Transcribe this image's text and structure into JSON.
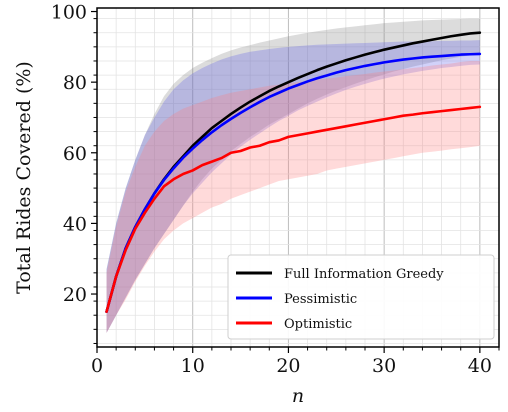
{
  "chart_data": {
    "type": "line",
    "xlabel": "n",
    "ylabel": "Total Rides Covered (%)",
    "xlim": [
      0,
      42
    ],
    "ylim": [
      5,
      101
    ],
    "xticks": [
      0,
      10,
      20,
      30,
      40
    ],
    "yticks": [
      20,
      40,
      60,
      80,
      100
    ],
    "grid": true,
    "minor_grid": true,
    "legend_position": "bottom-right",
    "x": [
      1,
      2,
      3,
      4,
      5,
      6,
      7,
      8,
      9,
      10,
      11,
      12,
      13,
      14,
      15,
      16,
      17,
      18,
      19,
      20,
      21,
      22,
      23,
      24,
      25,
      26,
      27,
      28,
      29,
      30,
      31,
      32,
      33,
      34,
      35,
      36,
      37,
      38,
      39,
      40
    ],
    "series": [
      {
        "name": "Full Information Greedy",
        "color": "#000000",
        "band_color": "#808080",
        "values": [
          15,
          25,
          33,
          39,
          44,
          48.5,
          52.5,
          56,
          59,
          62,
          64.5,
          67,
          69,
          71,
          72.8,
          74.5,
          76,
          77.5,
          78.8,
          80,
          81.2,
          82.3,
          83.4,
          84.4,
          85.3,
          86.2,
          87,
          87.8,
          88.5,
          89.2,
          89.8,
          90.4,
          91,
          91.5,
          92,
          92.5,
          93,
          93.4,
          93.8,
          94
        ],
        "upper": [
          27,
          40,
          50,
          58,
          65,
          71,
          76,
          79.5,
          82,
          84,
          85.5,
          86.8,
          88,
          89,
          89.8,
          90.5,
          91.2,
          91.8,
          92.4,
          93,
          93.5,
          94,
          94.4,
          94.8,
          95.2,
          95.5,
          95.8,
          96.1,
          96.4,
          96.7,
          96.9,
          97.1,
          97.3,
          97.5,
          97.6,
          97.7,
          97.8,
          97.9,
          98,
          98
        ],
        "lower": [
          9,
          14,
          19,
          24,
          28.5,
          33,
          37,
          41,
          45,
          49,
          52.5,
          55.5,
          58,
          60.5,
          62.5,
          64.5,
          66.2,
          68,
          69.5,
          71,
          72.5,
          74,
          75.3,
          76.5,
          77.6,
          78.6,
          79.6,
          80.5,
          81.4,
          82.2,
          83,
          83.7,
          84.4,
          85,
          85.6,
          86.2,
          86.7,
          87.2,
          87.6,
          88
        ]
      },
      {
        "name": "Pessimistic",
        "color": "#0000ff",
        "band_color": "#5a5ae8",
        "values": [
          15,
          25,
          33,
          39,
          44,
          48.5,
          52.3,
          55.6,
          58.6,
          61.2,
          63.6,
          65.8,
          67.8,
          69.6,
          71.3,
          72.9,
          74.4,
          75.8,
          77,
          78.2,
          79.2,
          80.2,
          81.1,
          81.9,
          82.7,
          83.4,
          84,
          84.6,
          85.1,
          85.6,
          86,
          86.4,
          86.7,
          87,
          87.2,
          87.4,
          87.6,
          87.8,
          87.9,
          88
        ],
        "upper": [
          27,
          40,
          50,
          58,
          65,
          70,
          74.5,
          78,
          80.5,
          82.5,
          84,
          85.3,
          86.4,
          87.3,
          88,
          88.6,
          89,
          89.4,
          89.7,
          90,
          90.2,
          90.4,
          90.6,
          90.7,
          90.8,
          90.9,
          91,
          91.1,
          91.2,
          91.3,
          91.4,
          91.5,
          91.5,
          91.6,
          91.6,
          91.7,
          91.7,
          91.8,
          91.8,
          91.9
        ],
        "lower": [
          9,
          14,
          19,
          24,
          28.5,
          33,
          37,
          41,
          45,
          48.5,
          51.5,
          54.5,
          57,
          59.5,
          61.7,
          63.7,
          65.5,
          67.3,
          69,
          70.5,
          72,
          73.3,
          74.5,
          75.7,
          76.8,
          77.8,
          78.7,
          79.5,
          80.3,
          81,
          81.6,
          82.2,
          82.7,
          83.2,
          83.6,
          84,
          84.3,
          84.6,
          84.9,
          85
        ]
      },
      {
        "name": "Optimistic",
        "color": "#ff0000",
        "band_color": "#ff7b7b",
        "values": [
          15,
          25,
          32.5,
          38.5,
          43,
          47,
          50.5,
          52.5,
          54,
          55,
          56.5,
          57.5,
          58.5,
          60,
          60.5,
          61.5,
          62,
          63,
          63.5,
          64.5,
          65,
          65.5,
          66,
          66.5,
          67,
          67.5,
          68,
          68.5,
          69,
          69.5,
          70,
          70.5,
          70.8,
          71.2,
          71.5,
          71.8,
          72.1,
          72.4,
          72.7,
          73
        ],
        "upper": [
          26,
          39,
          49,
          56,
          62,
          66,
          69,
          71,
          72.5,
          73.5,
          74.5,
          75.5,
          76.3,
          77,
          77.5,
          78,
          78.5,
          79,
          79.3,
          79.7,
          80,
          80.3,
          80.7,
          81,
          81.3,
          81.7,
          82,
          82.3,
          82.7,
          83,
          83.3,
          83.7,
          84,
          84.3,
          84.7,
          85,
          85.3,
          85.7,
          86,
          86
        ],
        "lower": [
          9,
          14,
          18.5,
          23.5,
          28,
          32,
          35.5,
          38,
          40,
          41.5,
          43,
          44.5,
          45.5,
          47,
          48,
          49,
          50,
          51,
          52,
          52.5,
          53,
          53.5,
          54,
          55,
          55.5,
          56,
          56.5,
          57,
          57.5,
          58,
          58.5,
          59,
          59.5,
          60,
          60.3,
          60.6,
          61,
          61.3,
          61.6,
          62
        ]
      }
    ]
  }
}
